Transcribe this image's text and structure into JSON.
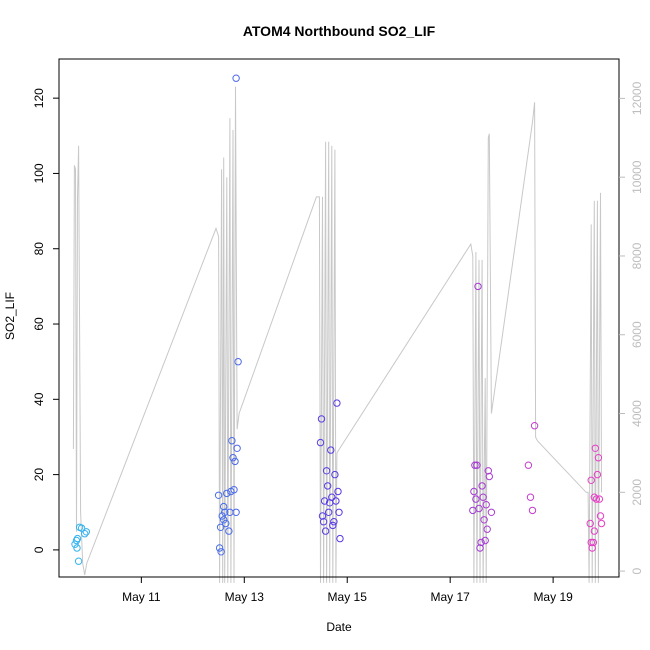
{
  "chart_data": {
    "type": "scatter",
    "title": "ATOM4 Northbound SO2_LIF",
    "xlabel": "Date",
    "ylabel": "SO2_LIF",
    "x_unit": "days in May",
    "xlim": [
      9.4,
      20.28
    ],
    "ylim": [
      -7.2,
      130.4
    ],
    "y2lim": [
      -150,
      13000
    ],
    "x_ticks": [
      {
        "value": 11,
        "label": "May 11"
      },
      {
        "value": 13,
        "label": "May 13"
      },
      {
        "value": 15,
        "label": "May 15"
      },
      {
        "value": 17,
        "label": "May 17"
      },
      {
        "value": 19,
        "label": "May 19"
      }
    ],
    "y_ticks": [
      0,
      20,
      40,
      60,
      80,
      100,
      120
    ],
    "y2_ticks": [
      0,
      2000,
      4000,
      6000,
      8000,
      10000,
      12000
    ],
    "grid": false,
    "box": true,
    "colors": {
      "altitude_line": "#c8c8c8",
      "right_axis": "#bdbdbd",
      "point_ramp_start": "#33b5ee",
      "point_ramp_mid": "#5a37e6",
      "point_ramp_end": "#e83fc4"
    },
    "series": [
      {
        "style": "points",
        "points": [
          [
            9.71,
            1.5
          ],
          [
            9.74,
            2.5
          ],
          [
            9.76,
            3.0
          ],
          [
            9.78,
            -3.0
          ],
          [
            9.8,
            6.0
          ],
          [
            9.84,
            5.8
          ],
          [
            9.9,
            4.3
          ],
          [
            9.93,
            4.8
          ],
          [
            9.75,
            0.5
          ],
          [
            12.52,
            0.5
          ],
          [
            12.55,
            -0.5
          ],
          [
            12.5,
            14.5
          ],
          [
            12.54,
            6.0
          ],
          [
            12.57,
            9.0
          ],
          [
            12.6,
            8.0
          ],
          [
            12.62,
            10.0
          ],
          [
            12.64,
            7.0
          ],
          [
            12.66,
            15.0
          ],
          [
            12.7,
            5.0
          ],
          [
            12.72,
            10.0
          ],
          [
            12.74,
            15.5
          ],
          [
            12.76,
            29.0
          ],
          [
            12.78,
            24.5
          ],
          [
            12.8,
            16.0
          ],
          [
            12.82,
            23.5
          ],
          [
            12.84,
            10.0
          ],
          [
            12.86,
            27.0
          ],
          [
            12.88,
            50.0
          ],
          [
            12.84,
            125.3
          ],
          [
            12.6,
            11.5
          ],
          [
            14.48,
            28.5
          ],
          [
            14.5,
            34.8
          ],
          [
            14.52,
            9.0
          ],
          [
            14.54,
            7.5
          ],
          [
            14.56,
            13.0
          ],
          [
            14.58,
            5.0
          ],
          [
            14.6,
            21.0
          ],
          [
            14.62,
            17.0
          ],
          [
            14.64,
            10.0
          ],
          [
            14.66,
            12.5
          ],
          [
            14.68,
            26.5
          ],
          [
            14.7,
            14.0
          ],
          [
            14.72,
            6.5
          ],
          [
            14.74,
            7.5
          ],
          [
            14.76,
            20.0
          ],
          [
            14.78,
            13.0
          ],
          [
            14.8,
            39.0
          ],
          [
            14.82,
            15.5
          ],
          [
            14.84,
            10.0
          ],
          [
            14.86,
            3.0
          ],
          [
            17.44,
            10.5
          ],
          [
            17.46,
            15.5
          ],
          [
            17.48,
            22.5
          ],
          [
            17.5,
            13.5
          ],
          [
            17.52,
            22.5
          ],
          [
            17.54,
            70.0
          ],
          [
            17.56,
            11.0
          ],
          [
            17.58,
            0.5
          ],
          [
            17.6,
            2.0
          ],
          [
            17.62,
            17.0
          ],
          [
            17.64,
            14.0
          ],
          [
            17.66,
            8.0
          ],
          [
            17.68,
            2.5
          ],
          [
            17.7,
            12.0
          ],
          [
            17.72,
            5.5
          ],
          [
            17.74,
            21.0
          ],
          [
            17.76,
            19.5
          ],
          [
            17.8,
            10.0
          ],
          [
            18.52,
            22.5
          ],
          [
            18.56,
            14.0
          ],
          [
            18.6,
            10.5
          ],
          [
            18.64,
            33.0
          ],
          [
            19.72,
            7.0
          ],
          [
            19.74,
            18.5
          ],
          [
            19.76,
            0.5
          ],
          [
            19.78,
            2.0
          ],
          [
            19.8,
            14.0
          ],
          [
            19.82,
            27.0
          ],
          [
            19.84,
            13.5
          ],
          [
            19.86,
            20.0
          ],
          [
            19.88,
            24.5
          ],
          [
            19.9,
            13.5
          ],
          [
            19.92,
            9.0
          ],
          [
            19.94,
            7.0
          ],
          [
            19.8,
            5.0
          ],
          [
            19.74,
            2.0
          ]
        ]
      },
      {
        "style": "line",
        "axis": "right",
        "points": [
          [
            9.68,
            3100
          ],
          [
            9.7,
            10300
          ],
          [
            9.72,
            10200
          ],
          [
            9.74,
            1000
          ],
          [
            9.76,
            9500
          ],
          [
            9.78,
            10800
          ],
          [
            9.82,
            1500
          ],
          [
            9.86,
            200
          ],
          [
            9.9,
            -100
          ],
          [
            9.94,
            200
          ],
          [
            12.45,
            8700
          ],
          [
            12.5,
            8500
          ],
          [
            12.52,
            -300
          ],
          [
            12.56,
            10200
          ],
          [
            12.58,
            -300
          ],
          [
            12.6,
            10500
          ],
          [
            12.62,
            -300
          ],
          [
            12.66,
            10000
          ],
          [
            12.68,
            -300
          ],
          [
            12.72,
            11500
          ],
          [
            12.74,
            -300
          ],
          [
            12.78,
            11200
          ],
          [
            12.8,
            -300
          ],
          [
            12.83,
            12300
          ],
          [
            12.86,
            3600
          ],
          [
            12.9,
            4000
          ],
          [
            14.4,
            9500
          ],
          [
            14.46,
            9500
          ],
          [
            14.48,
            -300
          ],
          [
            14.52,
            9500
          ],
          [
            14.54,
            -300
          ],
          [
            14.58,
            10900
          ],
          [
            14.6,
            -300
          ],
          [
            14.64,
            10900
          ],
          [
            14.66,
            -300
          ],
          [
            14.7,
            10800
          ],
          [
            14.72,
            -300
          ],
          [
            14.76,
            10700
          ],
          [
            14.78,
            -300
          ],
          [
            14.8,
            3000
          ],
          [
            17.4,
            8300
          ],
          [
            17.44,
            8000
          ],
          [
            17.46,
            -300
          ],
          [
            17.5,
            8100
          ],
          [
            17.52,
            -300
          ],
          [
            17.56,
            7900
          ],
          [
            17.58,
            -300
          ],
          [
            17.62,
            7900
          ],
          [
            17.64,
            -300
          ],
          [
            17.68,
            4900
          ],
          [
            17.7,
            -300
          ],
          [
            17.74,
            11000
          ],
          [
            17.76,
            11100
          ],
          [
            17.8,
            4000
          ],
          [
            18.6,
            11400
          ],
          [
            18.64,
            11900
          ],
          [
            18.66,
            3400
          ],
          [
            18.7,
            3300
          ],
          [
            19.64,
            2000
          ],
          [
            19.68,
            2000
          ],
          [
            19.7,
            -300
          ],
          [
            19.74,
            8800
          ],
          [
            19.76,
            -300
          ],
          [
            19.8,
            9400
          ],
          [
            19.82,
            -300
          ],
          [
            19.86,
            9400
          ],
          [
            19.88,
            -300
          ],
          [
            19.92,
            9600
          ],
          [
            19.94,
            2000
          ]
        ]
      }
    ]
  }
}
